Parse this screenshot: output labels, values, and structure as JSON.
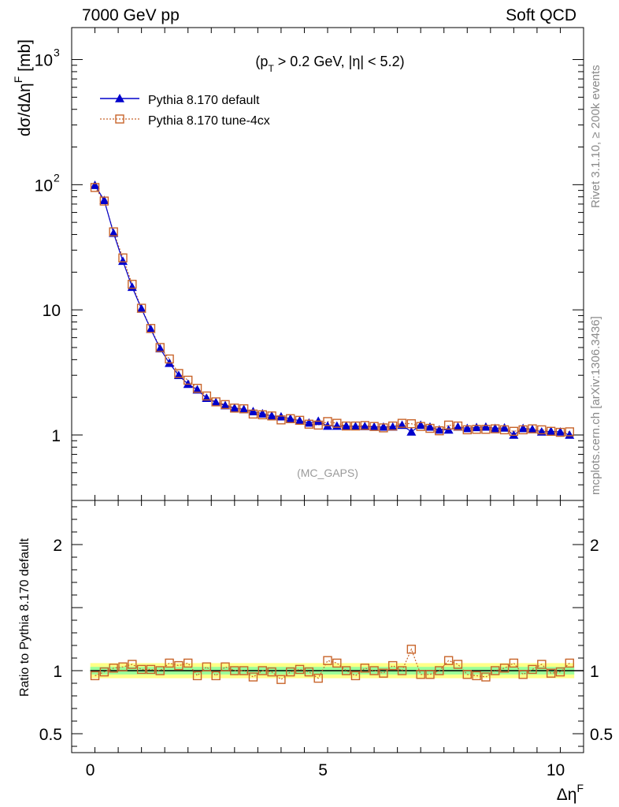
{
  "header": {
    "left_label": "7000 GeV pp",
    "right_label": "Soft QCD"
  },
  "side_labels": {
    "rivet": "Rivet 3.1.10, ≥ 200k events",
    "source": "mcplots.cern.ch [arXiv:1306.3436]"
  },
  "colors": {
    "default_series": "#0000cc",
    "tune_series": "#c8642a",
    "band_green": "#99ff99",
    "band_yellow": "#ffff88"
  },
  "chart_data": [
    {
      "type": "line",
      "title": "",
      "cut_label": "(p_T > 0.2 GeV, |η| < 5.2)",
      "analysis_label": "(MC_GAPS)",
      "ylabel": "dσ/dΔη^F [mb]",
      "xlabel": "Δη^F",
      "ylog": true,
      "ylim": [
        0.3,
        1800
      ],
      "xlim": [
        -0.4,
        10.6
      ],
      "yticks": [
        {
          "value": 1000,
          "label": "10",
          "exp": "3"
        },
        {
          "value": 100,
          "label": "10",
          "exp": "2"
        },
        {
          "value": 10,
          "label": "10",
          "exp": ""
        },
        {
          "value": 1,
          "label": "1",
          "exp": ""
        }
      ],
      "legend_position": "top-left",
      "x": [
        0.1,
        0.3,
        0.5,
        0.7,
        0.9,
        1.1,
        1.3,
        1.5,
        1.7,
        1.9,
        2.1,
        2.3,
        2.5,
        2.7,
        2.9,
        3.1,
        3.3,
        3.5,
        3.7,
        3.9,
        4.1,
        4.3,
        4.5,
        4.7,
        4.9,
        5.1,
        5.3,
        5.5,
        5.7,
        5.9,
        6.1,
        6.3,
        6.5,
        6.7,
        6.9,
        7.1,
        7.3,
        7.5,
        7.7,
        7.9,
        8.1,
        8.3,
        8.5,
        8.7,
        8.9,
        9.1,
        9.3,
        9.5,
        9.7,
        9.9,
        10.1,
        10.3
      ],
      "series": [
        {
          "name": "Pythia 8.170 default",
          "values": [
            99,
            75,
            41,
            24.5,
            15.2,
            10.2,
            7.0,
            4.9,
            3.75,
            3.0,
            2.55,
            2.3,
            1.97,
            1.82,
            1.72,
            1.64,
            1.6,
            1.54,
            1.48,
            1.42,
            1.4,
            1.35,
            1.3,
            1.25,
            1.29,
            1.18,
            1.18,
            1.18,
            1.17,
            1.17,
            1.16,
            1.16,
            1.16,
            1.2,
            1.06,
            1.2,
            1.16,
            1.1,
            1.1,
            1.16,
            1.13,
            1.15,
            1.16,
            1.13,
            1.14,
            1.0,
            1.13,
            1.11,
            1.06,
            1.07,
            1.06,
            1.0
          ]
        },
        {
          "name": "Pythia 8.170 tune-4cx",
          "values": [
            95,
            74,
            42,
            26,
            16,
            10.3,
            7.1,
            5.0,
            4.05,
            3.1,
            2.74,
            2.36,
            2.05,
            1.84,
            1.75,
            1.64,
            1.62,
            1.47,
            1.45,
            1.42,
            1.32,
            1.35,
            1.31,
            1.22,
            1.2,
            1.28,
            1.24,
            1.18,
            1.18,
            1.19,
            1.17,
            1.14,
            1.18,
            1.24,
            1.23,
            1.17,
            1.13,
            1.08,
            1.2,
            1.18,
            1.1,
            1.11,
            1.11,
            1.12,
            1.1,
            1.07,
            1.1,
            1.12,
            1.1,
            1.07,
            1.05,
            1.06
          ]
        }
      ]
    },
    {
      "type": "line",
      "ylabel": "Ratio to Pythia 8.170 default",
      "xlabel": "Δη^F",
      "ylim": [
        0.35,
        2.35
      ],
      "xlim": [
        -0.4,
        10.6
      ],
      "yticks": [
        {
          "value": 2,
          "label": "2"
        },
        {
          "value": 1,
          "label": "1"
        },
        {
          "value": 0.5,
          "label": "0.5"
        }
      ],
      "xticks": [
        {
          "value": 0,
          "label": "0"
        },
        {
          "value": 5,
          "label": "5"
        },
        {
          "value": 10,
          "label": "10"
        }
      ],
      "band_green": [
        0.97,
        1.03
      ],
      "band_yellow": [
        0.94,
        1.06
      ],
      "x": [
        0.1,
        0.3,
        0.5,
        0.7,
        0.9,
        1.1,
        1.3,
        1.5,
        1.7,
        1.9,
        2.1,
        2.3,
        2.5,
        2.7,
        2.9,
        3.1,
        3.3,
        3.5,
        3.7,
        3.9,
        4.1,
        4.3,
        4.5,
        4.7,
        4.9,
        5.1,
        5.3,
        5.5,
        5.7,
        5.9,
        6.1,
        6.3,
        6.5,
        6.7,
        6.9,
        7.1,
        7.3,
        7.5,
        7.7,
        7.9,
        8.1,
        8.3,
        8.5,
        8.7,
        8.9,
        9.1,
        9.3,
        9.5,
        9.7,
        9.9,
        10.1,
        10.3
      ],
      "series": [
        {
          "name": "Pythia 8.170 tune-4cx",
          "values": [
            0.96,
            0.99,
            1.02,
            1.03,
            1.05,
            1.01,
            1.01,
            1.0,
            1.06,
            1.04,
            1.06,
            0.96,
            1.03,
            0.96,
            1.03,
            1.0,
            1.0,
            0.95,
            1.0,
            0.99,
            0.93,
            0.99,
            1.01,
            0.99,
            0.94,
            1.08,
            1.06,
            1.0,
            0.96,
            1.02,
            1.0,
            0.98,
            1.04,
            1.0,
            1.17,
            0.97,
            0.97,
            1.0,
            1.08,
            1.05,
            0.97,
            0.96,
            0.95,
            1.0,
            1.02,
            1.06,
            0.97,
            1.01,
            1.05,
            0.98,
            0.99,
            1.06
          ]
        }
      ]
    }
  ]
}
